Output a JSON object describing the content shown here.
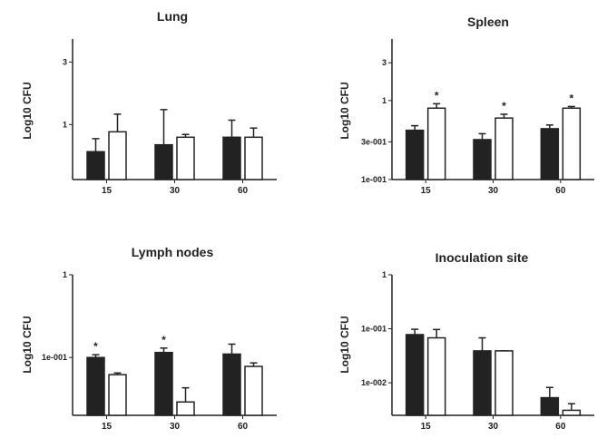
{
  "chart_data": [
    {
      "type": "bar",
      "title": "Lung",
      "ylabel": "Log10 CFU",
      "yscale": "log",
      "categories": [
        "15",
        "30",
        "60"
      ],
      "ytick_labels": [
        "1",
        "3"
      ],
      "yticks": [
        1,
        3
      ],
      "ylim": [
        0.38,
        4.5
      ],
      "series": [
        {
          "fill": "#222222",
          "values": [
            0.62,
            0.7,
            0.8
          ],
          "errors": [
            0.78,
            1.3,
            1.08
          ]
        },
        {
          "fill": "#ffffff",
          "values": [
            0.88,
            0.8,
            0.8
          ],
          "errors": [
            1.2,
            0.84,
            0.94
          ]
        }
      ],
      "annotations": [],
      "legend": "none",
      "grid": false
    },
    {
      "type": "bar",
      "title": "Spleen",
      "ylabel": "Log10 CFU",
      "yscale": "log",
      "categories": [
        "15",
        "30",
        "60"
      ],
      "ytick_labels": [
        "1e-001",
        "3e-001",
        "1",
        "3"
      ],
      "yticks": [
        0.1,
        0.3,
        1,
        3
      ],
      "ylim": [
        0.1,
        6
      ],
      "series": [
        {
          "fill": "#222222",
          "values": [
            0.42,
            0.32,
            0.44
          ],
          "errors": [
            0.48,
            0.38,
            0.49
          ]
        },
        {
          "fill": "#ffffff",
          "values": [
            0.8,
            0.6,
            0.8
          ],
          "errors": [
            0.91,
            0.67,
            0.84
          ]
        }
      ],
      "annotations": [
        {
          "category": "15",
          "series": 1,
          "text": "*"
        },
        {
          "category": "30",
          "series": 1,
          "text": "*"
        },
        {
          "category": "60",
          "series": 1,
          "text": "*"
        }
      ],
      "legend": "none",
      "grid": false
    },
    {
      "type": "bar",
      "title": "Lymph nodes",
      "ylabel": "Log10 CFU",
      "yscale": "log",
      "categories": [
        "15",
        "30",
        "60"
      ],
      "ytick_labels": [
        "1e-001",
        "1"
      ],
      "yticks": [
        0.1,
        1
      ],
      "ylim": [
        0.02,
        1
      ],
      "series": [
        {
          "fill": "#222222",
          "values": [
            0.1,
            0.115,
            0.11
          ],
          "errors": [
            0.108,
            0.13,
            0.145
          ]
        },
        {
          "fill": "#ffffff",
          "values": [
            0.062,
            0.029,
            0.078
          ],
          "errors": [
            0.065,
            0.043,
            0.086
          ]
        }
      ],
      "annotations": [
        {
          "category": "15",
          "series": 0,
          "text": "*"
        },
        {
          "category": "30",
          "series": 0,
          "text": "*"
        }
      ],
      "legend": "none",
      "grid": false
    },
    {
      "type": "bar",
      "title": "Inoculation site",
      "ylabel": "Log10 CFU",
      "yscale": "log",
      "categories": [
        "15",
        "30",
        "60"
      ],
      "ytick_labels": [
        "1e-002",
        "1e-001",
        "1"
      ],
      "yticks": [
        0.01,
        0.1,
        1
      ],
      "ylim": [
        0.0025,
        1
      ],
      "series": [
        {
          "fill": "#222222",
          "values": [
            0.078,
            0.039,
            0.0053
          ],
          "errors": [
            0.098,
            0.068,
            0.0082
          ]
        },
        {
          "fill": "#ffffff",
          "values": [
            0.068,
            0.039,
            0.0031
          ],
          "errors": [
            0.097,
            0.039,
            0.0041
          ]
        }
      ],
      "annotations": [],
      "legend": "none",
      "grid": false
    }
  ]
}
